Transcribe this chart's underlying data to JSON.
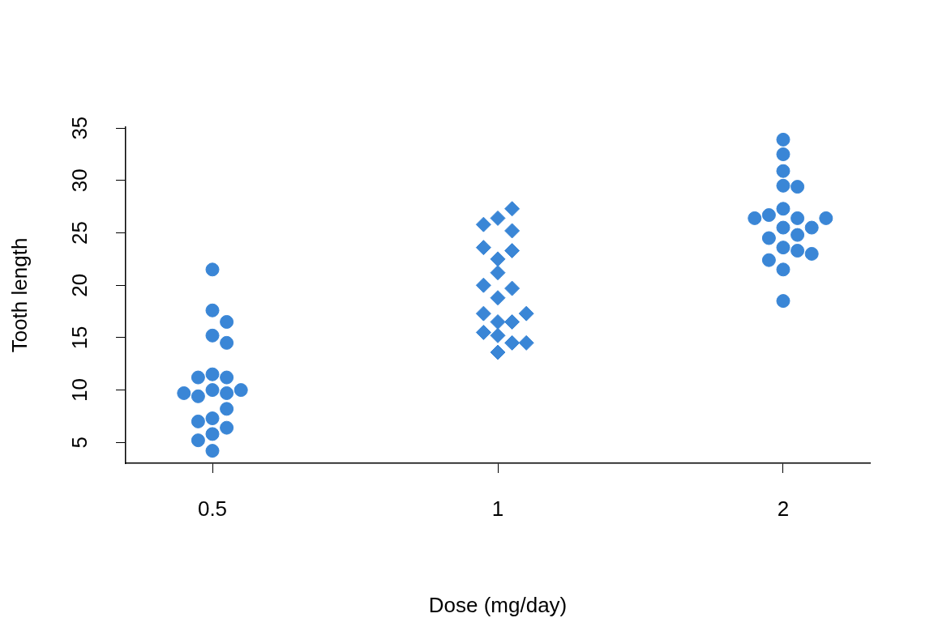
{
  "chart_data": {
    "type": "scatter",
    "xlabel": "Dose (mg/day)",
    "ylabel": "Tooth length",
    "categories": [
      "0.5",
      "1",
      "2"
    ],
    "ylim": [
      3.01,
      35.09
    ],
    "yticks": [
      5,
      10,
      15,
      20,
      25,
      30,
      35
    ],
    "grid": false,
    "legend": false,
    "series": [
      {
        "color": "#3a86d6",
        "marker": "circle",
        "x": [
          "0.5",
          "0.5",
          "0.5",
          "0.5",
          "0.5",
          "0.5",
          "0.5",
          "0.5",
          "0.5",
          "0.5",
          "0.5",
          "0.5",
          "0.5",
          "0.5",
          "0.5",
          "0.5",
          "0.5",
          "0.5",
          "0.5",
          "0.5"
        ],
        "values": [
          4.2,
          11.5,
          7.3,
          5.8,
          6.4,
          10,
          11.2,
          11.2,
          5.2,
          7,
          15.2,
          21.5,
          17.6,
          9.7,
          14.5,
          10,
          8.2,
          9.4,
          16.5,
          9.7
        ]
      },
      {
        "color": "#3a86d6",
        "marker": "diamond",
        "x": [
          "1",
          "1",
          "1",
          "1",
          "1",
          "1",
          "1",
          "1",
          "1",
          "1",
          "1",
          "1",
          "1",
          "1",
          "1",
          "1",
          "1",
          "1",
          "1",
          "1"
        ],
        "values": [
          16.5,
          16.5,
          15.2,
          17.3,
          22.5,
          17.3,
          13.6,
          14.5,
          18.8,
          15.5,
          19.7,
          23.3,
          23.6,
          26.4,
          20,
          25.2,
          25.8,
          21.2,
          14.5,
          27.3
        ]
      },
      {
        "color": "#3a86d6",
        "marker": "circle",
        "x": [
          "2",
          "2",
          "2",
          "2",
          "2",
          "2",
          "2",
          "2",
          "2",
          "2",
          "2",
          "2",
          "2",
          "2",
          "2",
          "2",
          "2",
          "2",
          "2",
          "2"
        ],
        "values": [
          23.6,
          18.5,
          33.9,
          25.5,
          26.4,
          32.5,
          26.7,
          21.5,
          23.3,
          29.5,
          25.5,
          26.4,
          22.4,
          24.5,
          24.8,
          30.9,
          26.4,
          27.3,
          29.4,
          23
        ]
      }
    ]
  }
}
